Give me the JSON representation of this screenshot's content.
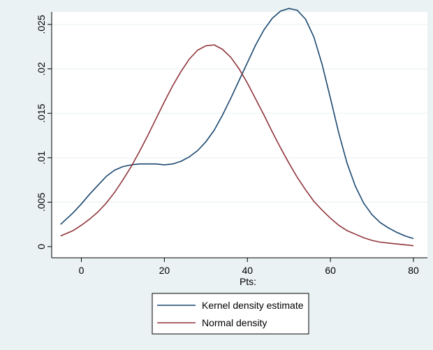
{
  "chart_data": {
    "type": "line",
    "title": "",
    "xlabel": "Pts:",
    "ylabel": "",
    "xlim": [
      -5,
      80
    ],
    "ylim": [
      0,
      0.025
    ],
    "x_ticks": [
      0,
      20,
      40,
      60,
      80
    ],
    "x_tick_labels": [
      "0",
      "20",
      "40",
      "60",
      "80"
    ],
    "y_ticks": [
      0,
      0.005,
      0.01,
      0.015,
      0.02,
      0.025
    ],
    "y_tick_labels": [
      "0",
      ".005",
      ".01",
      ".015",
      ".02",
      ".025"
    ],
    "grid": true,
    "legend_position": "bottom",
    "series": [
      {
        "name": "Kernel density estimate",
        "color": "#1a476f",
        "points": [
          [
            -5,
            0.0025
          ],
          [
            -2,
            0.0038
          ],
          [
            0,
            0.0048
          ],
          [
            2,
            0.0059
          ],
          [
            4,
            0.0069
          ],
          [
            6,
            0.0079
          ],
          [
            8,
            0.0086
          ],
          [
            10,
            0.009
          ],
          [
            12,
            0.0092
          ],
          [
            14,
            0.0093
          ],
          [
            16,
            0.0093
          ],
          [
            18,
            0.0093
          ],
          [
            20,
            0.0092
          ],
          [
            22,
            0.0093
          ],
          [
            24,
            0.0096
          ],
          [
            26,
            0.0101
          ],
          [
            28,
            0.0108
          ],
          [
            30,
            0.0118
          ],
          [
            32,
            0.0131
          ],
          [
            34,
            0.0148
          ],
          [
            36,
            0.0167
          ],
          [
            38,
            0.0187
          ],
          [
            40,
            0.0207
          ],
          [
            42,
            0.0227
          ],
          [
            44,
            0.0244
          ],
          [
            46,
            0.0257
          ],
          [
            48,
            0.0265
          ],
          [
            50,
            0.0268
          ],
          [
            52,
            0.0266
          ],
          [
            54,
            0.0256
          ],
          [
            56,
            0.0236
          ],
          [
            58,
            0.0205
          ],
          [
            60,
            0.0167
          ],
          [
            62,
            0.0128
          ],
          [
            64,
            0.0094
          ],
          [
            66,
            0.0068
          ],
          [
            68,
            0.0049
          ],
          [
            70,
            0.0036
          ],
          [
            72,
            0.0027
          ],
          [
            74,
            0.0021
          ],
          [
            76,
            0.0016
          ],
          [
            78,
            0.0012
          ],
          [
            80,
            0.0009
          ]
        ]
      },
      {
        "name": "Normal density",
        "color": "#90353b",
        "points": [
          [
            -5,
            0.0012
          ],
          [
            -2,
            0.0018
          ],
          [
            0,
            0.0024
          ],
          [
            2,
            0.0031
          ],
          [
            4,
            0.0039
          ],
          [
            6,
            0.0049
          ],
          [
            8,
            0.0061
          ],
          [
            10,
            0.0075
          ],
          [
            12,
            0.009
          ],
          [
            14,
            0.0107
          ],
          [
            16,
            0.0125
          ],
          [
            18,
            0.0144
          ],
          [
            20,
            0.0163
          ],
          [
            22,
            0.0181
          ],
          [
            24,
            0.0197
          ],
          [
            26,
            0.0211
          ],
          [
            28,
            0.0221
          ],
          [
            30,
            0.0226
          ],
          [
            32,
            0.0227
          ],
          [
            34,
            0.0222
          ],
          [
            36,
            0.0213
          ],
          [
            38,
            0.02
          ],
          [
            40,
            0.0184
          ],
          [
            42,
            0.0166
          ],
          [
            44,
            0.0148
          ],
          [
            46,
            0.0129
          ],
          [
            48,
            0.0111
          ],
          [
            50,
            0.0094
          ],
          [
            52,
            0.0078
          ],
          [
            54,
            0.0064
          ],
          [
            56,
            0.0051
          ],
          [
            58,
            0.0041
          ],
          [
            60,
            0.0032
          ],
          [
            62,
            0.0024
          ],
          [
            64,
            0.0018
          ],
          [
            66,
            0.0014
          ],
          [
            68,
            0.001
          ],
          [
            70,
            0.0007
          ],
          [
            72,
            0.0005
          ],
          [
            74,
            0.0004
          ],
          [
            76,
            0.0003
          ],
          [
            78,
            0.0002
          ],
          [
            80,
            0.0001
          ]
        ]
      }
    ]
  }
}
